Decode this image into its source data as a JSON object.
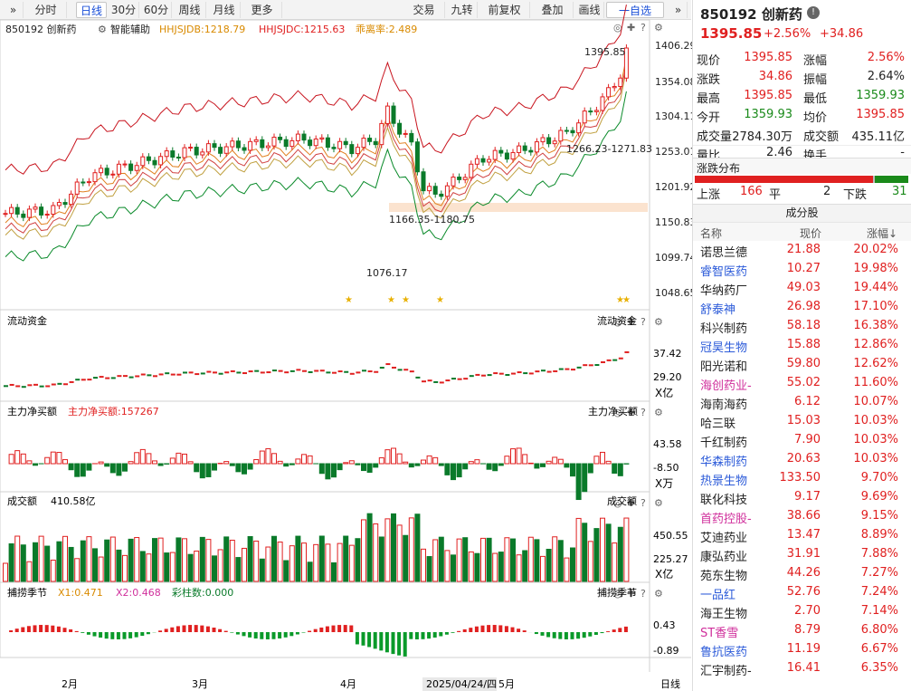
{
  "toolbar": {
    "left": [
      "»",
      "分时",
      "日线",
      "30分",
      "60分",
      "周线",
      "月线",
      "更多"
    ],
    "right": [
      "交易",
      "九转",
      "前复权",
      "叠加",
      "画线",
      "一自选",
      "»"
    ]
  },
  "header": {
    "code_name": "850192 创新药",
    "tool": "智能辅助",
    "i1": "HHJSJDB:1218.79",
    "i2": "HHJSJDC:1215.63",
    "i3": "乖离率:2.489"
  },
  "main_price_labels": [
    "1406.29",
    "1354.08",
    "1304.11",
    "1253.01",
    "1201.92",
    "1150.83",
    "1099.74",
    "1048.65"
  ],
  "main_annotations": {
    "high": "1395.85",
    "low": "1076.17",
    "gap": "1166.35-1180.75",
    "gap2": "1266.23-1271.83"
  },
  "p2": {
    "title": "流动资金",
    "right_title": "流动资金",
    "v1": "37.42",
    "v2": "29.20",
    "unit": "X亿"
  },
  "p3": {
    "title": "主力净买额",
    "val": "主力净买额:157267",
    "right_title": "主力净买额",
    "v1": "43.58",
    "v2": "-8.50",
    "unit": "X万"
  },
  "p4": {
    "title": "成交额",
    "val": "410.58亿",
    "right_title": "成交额",
    "v1": "450.55",
    "v2": "225.27",
    "unit": "X亿"
  },
  "p5": {
    "title": "捕捞季节",
    "x1": "X1:0.471",
    "x2": "X2:0.468",
    "color": "彩柱数:0.000",
    "right_title": "捕捞季节",
    "v1": "0.43",
    "v2": "-0.89"
  },
  "xaxis": {
    "labels": [
      "2月",
      "3月",
      "4月",
      "5月"
    ],
    "cursor": "2025/04/24/四",
    "period": "日线"
  },
  "quote": {
    "title": "850192 创新药",
    "price": "1395.85",
    "pct": "+2.56%",
    "chg": "+34.86",
    "rows": [
      {
        "l1": "现价",
        "v1": "1395.85",
        "l2": "涨幅",
        "v2": "2.56%",
        "c1": "red",
        "c2": "red"
      },
      {
        "l1": "涨跌",
        "v1": "34.86",
        "l2": "振幅",
        "v2": "2.64%",
        "c1": "red",
        "c2": ""
      },
      {
        "l1": "最高",
        "v1": "1395.85",
        "l2": "最低",
        "v2": "1359.93",
        "c1": "red",
        "c2": "green"
      },
      {
        "l1": "今开",
        "v1": "1359.93",
        "l2": "均价",
        "v2": "1395.85",
        "c1": "green",
        "c2": "red"
      },
      {
        "l1": "成交量",
        "v1": "2784.30万",
        "l2": "成交额",
        "v2": "435.11亿",
        "c1": "",
        "c2": ""
      },
      {
        "l1": "量比",
        "v1": "2.46",
        "l2": "换手",
        "v2": "-",
        "c1": "",
        "c2": ""
      }
    ],
    "dist_title": "涨跌分布",
    "up_label": "上涨",
    "up": "166",
    "flat_label": "平",
    "flat": "2",
    "down_label": "下跌",
    "down": "31",
    "dist_fraction": {
      "up": 0.834,
      "flat": 0.01,
      "down": 0.156
    }
  },
  "components": {
    "title": "成分股",
    "headers": [
      "名称",
      "现价",
      "涨幅↓"
    ],
    "rows": [
      {
        "name": "诺思兰德",
        "price": "21.88",
        "pct": "20.02%",
        "c": ""
      },
      {
        "name": "睿智医药",
        "price": "10.27",
        "pct": "19.98%",
        "c": "blue"
      },
      {
        "name": "华纳药厂",
        "price": "49.03",
        "pct": "19.44%",
        "c": ""
      },
      {
        "name": "舒泰神",
        "price": "26.98",
        "pct": "17.10%",
        "c": "blue"
      },
      {
        "name": "科兴制药",
        "price": "58.18",
        "pct": "16.38%",
        "c": ""
      },
      {
        "name": "冠昊生物",
        "price": "15.88",
        "pct": "12.86%",
        "c": "blue"
      },
      {
        "name": "阳光诺和",
        "price": "59.80",
        "pct": "12.62%",
        "c": ""
      },
      {
        "name": "海创药业-",
        "price": "55.02",
        "pct": "11.60%",
        "c": "pink"
      },
      {
        "name": "海南海药",
        "price": "6.12",
        "pct": "10.07%",
        "c": ""
      },
      {
        "name": "哈三联",
        "price": "15.03",
        "pct": "10.03%",
        "c": ""
      },
      {
        "name": "千红制药",
        "price": "7.90",
        "pct": "10.03%",
        "c": ""
      },
      {
        "name": "华森制药",
        "price": "20.63",
        "pct": "10.03%",
        "c": "blue"
      },
      {
        "name": "热景生物",
        "price": "133.50",
        "pct": "9.70%",
        "c": "blue"
      },
      {
        "name": "联化科技",
        "price": "9.17",
        "pct": "9.69%",
        "c": ""
      },
      {
        "name": "首药控股-",
        "price": "38.66",
        "pct": "9.15%",
        "c": "pink"
      },
      {
        "name": "艾迪药业",
        "price": "13.47",
        "pct": "8.89%",
        "c": ""
      },
      {
        "name": "康弘药业",
        "price": "31.91",
        "pct": "7.88%",
        "c": ""
      },
      {
        "name": "苑东生物",
        "price": "44.26",
        "pct": "7.27%",
        "c": ""
      },
      {
        "name": "一品红",
        "price": "52.76",
        "pct": "7.24%",
        "c": "blue"
      },
      {
        "name": "海王生物",
        "price": "2.70",
        "pct": "7.14%",
        "c": ""
      },
      {
        "name": "ST香雪",
        "price": "8.79",
        "pct": "6.80%",
        "c": "pink"
      },
      {
        "name": "鲁抗医药",
        "price": "11.19",
        "pct": "6.67%",
        "c": "blue"
      },
      {
        "name": "汇宇制药-",
        "price": "16.41",
        "pct": "6.35%",
        "c": ""
      }
    ]
  },
  "colors": {
    "up": "#e02020",
    "down": "#0a7a2a",
    "accent": "#1a4fd8"
  }
}
